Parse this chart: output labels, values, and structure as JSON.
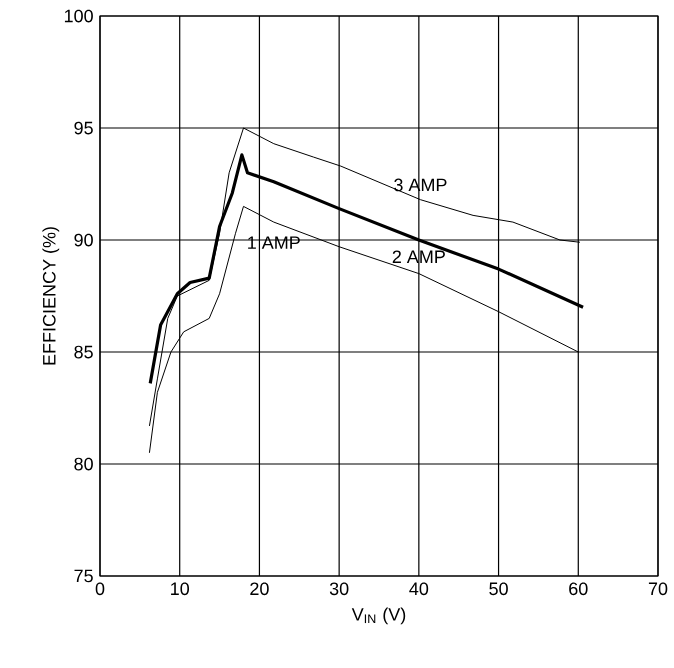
{
  "chart_data": {
    "type": "line",
    "xlabel": "V$_{IN}$ (V)",
    "ylabel": "EFFICIENCY (%)",
    "xlim": [
      0,
      70
    ],
    "ylim": [
      75,
      100
    ],
    "xticks": [
      0,
      10,
      20,
      30,
      40,
      50,
      60,
      70
    ],
    "yticks": [
      75,
      80,
      85,
      90,
      95,
      100
    ],
    "grid": true,
    "series": [
      {
        "name": "3 AMP",
        "color": "#000000",
        "x": [
          6.2,
          7.2,
          8.5,
          9.7,
          13.7,
          15,
          16.2,
          18,
          21.8,
          26.8,
          30.2,
          40.2,
          46.8,
          51.8,
          57.7,
          60.2
        ],
        "values": [
          81.7,
          83.8,
          86.5,
          87.5,
          88.2,
          90.3,
          93,
          95,
          94.3,
          93.7,
          93.3,
          91.8,
          91.1,
          90.8,
          90,
          89.9
        ]
      },
      {
        "name": "2 AMP",
        "color": "#000000",
        "x": [
          6.3,
          7.6,
          9.7,
          11.3,
          13.7,
          15,
          16.6,
          17.8,
          18.5,
          21.8,
          30,
          40,
          50,
          60.6
        ],
        "values": [
          83.6,
          86.2,
          87.6,
          88.1,
          88.3,
          90.6,
          92.1,
          93.8,
          93,
          92.6,
          91.4,
          90,
          88.7,
          87
        ]
      },
      {
        "name": "1 AMP",
        "color": "#000000",
        "x": [
          6.2,
          7.2,
          8.9,
          10.5,
          13.7,
          15,
          17,
          18,
          21.8,
          30,
          40,
          50,
          60
        ],
        "values": [
          80.5,
          83.2,
          85,
          85.9,
          86.5,
          87.6,
          90.3,
          91.5,
          90.8,
          89.7,
          88.5,
          86.8,
          85
        ]
      }
    ]
  }
}
